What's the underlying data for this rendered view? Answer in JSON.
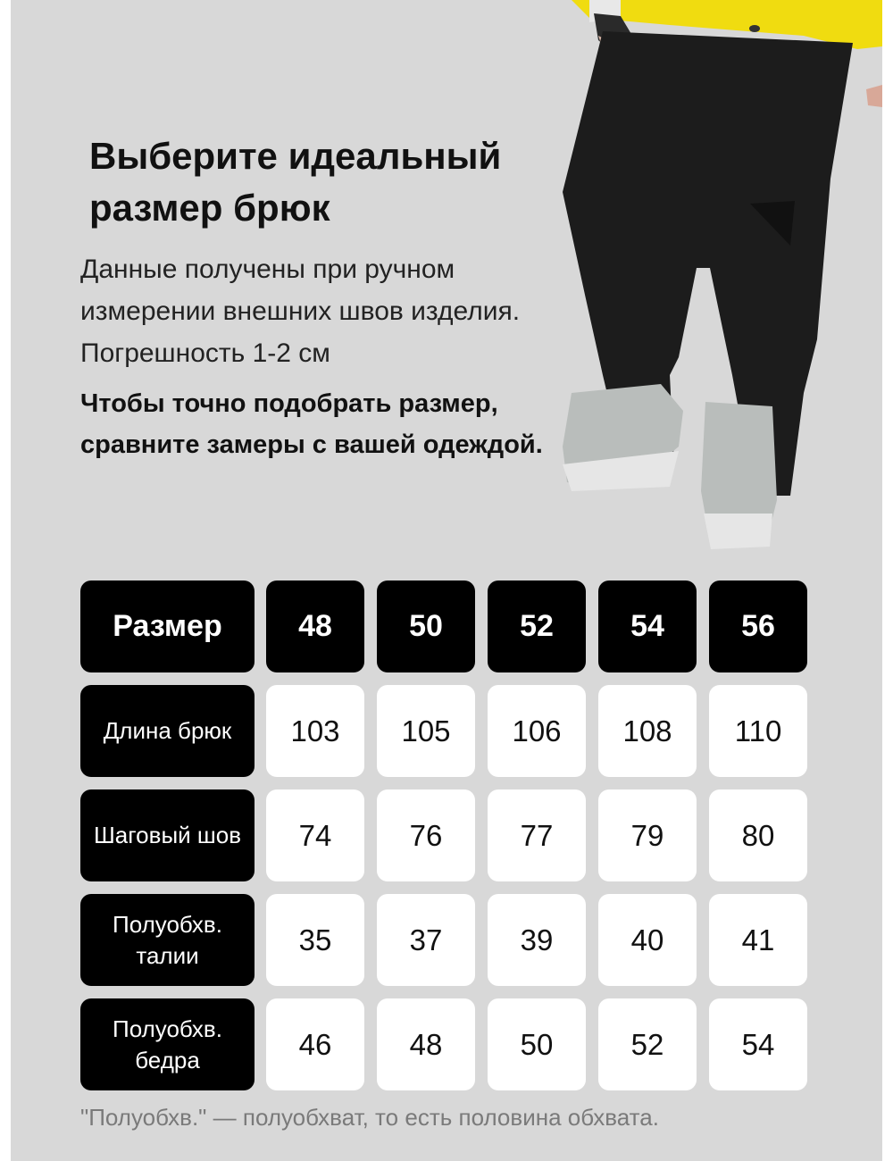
{
  "title": "Выберите идеальный размер брюк",
  "description": "Данные получены при ручном измерении внешних швов изделия. Погрешность 1-2 см",
  "note": "Чтобы точно подобрать размер, сравните замеры с вашей одеждой.",
  "table": {
    "header_label": "Размер",
    "sizes": [
      "48",
      "50",
      "52",
      "54",
      "56"
    ],
    "rows": [
      {
        "label": "Длина брюк",
        "values": [
          "103",
          "105",
          "106",
          "108",
          "110"
        ]
      },
      {
        "label": "Шаговый шов",
        "values": [
          "74",
          "76",
          "77",
          "79",
          "80"
        ]
      },
      {
        "label": "Полуобхв. талии",
        "values": [
          "35",
          "37",
          "39",
          "40",
          "41"
        ]
      },
      {
        "label": "Полуобхв. бедра",
        "values": [
          "46",
          "48",
          "50",
          "52",
          "54"
        ]
      }
    ]
  },
  "footer": "\"Полуобхв.\" — полуобхват, то есть половина обхвата.",
  "colors": {
    "background": "#d8d8d8",
    "header_cell": "#000000",
    "value_cell": "#ffffff",
    "jacket": "#f2e200"
  }
}
